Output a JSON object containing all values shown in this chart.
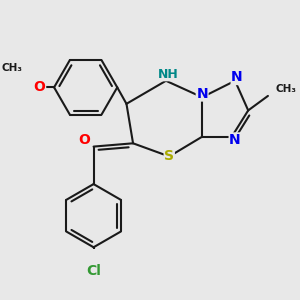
{
  "bg_color": "#e8e8e8",
  "bond_color": "#1a1a1a",
  "bond_width": 1.5,
  "atom_colors": {
    "N": "#0000ee",
    "NH": "#008888",
    "S": "#aaaa00",
    "O": "#ff0000",
    "Cl": "#339933",
    "C": "#1a1a1a"
  },
  "font_size": 10
}
